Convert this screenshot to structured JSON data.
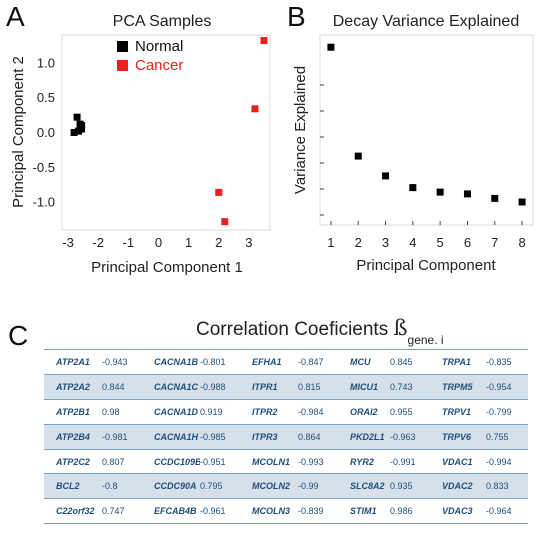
{
  "panels": {
    "a_letter": "A",
    "b_letter": "B",
    "c_letter": "C"
  },
  "chart_data": [
    {
      "type": "scatter",
      "title": "PCA Samples",
      "xlabel": "Principal Component 1",
      "ylabel": "Principal Component 2",
      "xlim": [
        -3.2,
        3.7
      ],
      "ylim": [
        -1.4,
        1.4
      ],
      "xticks": [
        -3,
        -2,
        -1,
        0,
        1,
        2,
        3
      ],
      "yticks": [
        1.0,
        0.5,
        0.0,
        -0.5,
        -1.0
      ],
      "ytick_labels": [
        "1.0",
        "0.5",
        "0.0",
        "-0.5",
        "-1.0"
      ],
      "legend_position": "top-left",
      "series": [
        {
          "name": "Normal",
          "color": "#000000",
          "points": [
            [
              -2.8,
              0.0
            ],
            [
              -2.7,
              0.22
            ],
            [
              -2.65,
              0.02
            ],
            [
              -2.6,
              0.12
            ],
            [
              -2.55,
              0.05
            ],
            [
              -2.55,
              0.1
            ]
          ]
        },
        {
          "name": "Cancer",
          "color": "#e8211b",
          "points": [
            [
              3.5,
              1.32
            ],
            [
              3.2,
              0.34
            ],
            [
              2.0,
              -0.86
            ],
            [
              2.2,
              -1.28
            ]
          ]
        }
      ]
    },
    {
      "type": "scatter",
      "title": "Decay Variance Explained",
      "xlabel": "Principal Component",
      "ylabel": "Variance Explained",
      "xlim": [
        0.6,
        8.4
      ],
      "xticks": [
        1,
        2,
        3,
        4,
        5,
        6,
        7,
        8
      ],
      "yticks_unlabeled": 6,
      "ylim": [
        0,
        1
      ],
      "series": [
        {
          "color": "#000000",
          "points": [
            [
              1,
              0.96
            ],
            [
              2,
              0.355
            ],
            [
              3,
              0.245
            ],
            [
              4,
              0.18
            ],
            [
              5,
              0.155
            ],
            [
              6,
              0.145
            ],
            [
              7,
              0.12
            ],
            [
              8,
              0.1
            ]
          ]
        }
      ]
    }
  ],
  "correlation": {
    "title": "Correlation Coeficients",
    "beta": "ß",
    "subscript": "gene. i",
    "rows": [
      [
        [
          "ATP2A1",
          "-0.943"
        ],
        [
          "CACNA1B",
          "-0.801"
        ],
        [
          "EFHA1",
          "-0.847"
        ],
        [
          "MCU",
          "0.845"
        ],
        [
          "TRPA1",
          "-0.835"
        ]
      ],
      [
        [
          "ATP2A2",
          "0.844"
        ],
        [
          "CACNA1C",
          "-0.988"
        ],
        [
          "ITPR1",
          "0.815"
        ],
        [
          "MICU1",
          "0.743"
        ],
        [
          "TRPM5",
          "-0.954"
        ]
      ],
      [
        [
          "ATP2B1",
          "0.98"
        ],
        [
          "CACNA1D",
          "0.919"
        ],
        [
          "ITPR2",
          "-0.984"
        ],
        [
          "ORAI2",
          "0.955"
        ],
        [
          "TRPV1",
          "-0.799"
        ]
      ],
      [
        [
          "ATP2B4",
          "-0.981"
        ],
        [
          "CACNA1H",
          "-0.985"
        ],
        [
          "ITPR3",
          "0.864"
        ],
        [
          "PKD2L1",
          "-0.963"
        ],
        [
          "TRPV6",
          "0.755"
        ]
      ],
      [
        [
          "ATP2C2",
          "0.807"
        ],
        [
          "CCDC109B",
          "-0.951"
        ],
        [
          "MCOLN1",
          "-0.993"
        ],
        [
          "RYR2",
          "-0.991"
        ],
        [
          "VDAC1",
          "-0.994"
        ]
      ],
      [
        [
          "BCL2",
          "-0.8"
        ],
        [
          "CCDC90A",
          "0.795"
        ],
        [
          "MCOLN2",
          "-0.99"
        ],
        [
          "SLC8A2",
          "0.935"
        ],
        [
          "VDAC2",
          "0.833"
        ]
      ],
      [
        [
          "C22orf32",
          "0.747"
        ],
        [
          "EFCAB4B",
          "-0.961"
        ],
        [
          "MCOLN3",
          "-0.839"
        ],
        [
          "STIM1",
          "0.986"
        ],
        [
          "VDAC3",
          "-0.964"
        ]
      ]
    ]
  }
}
